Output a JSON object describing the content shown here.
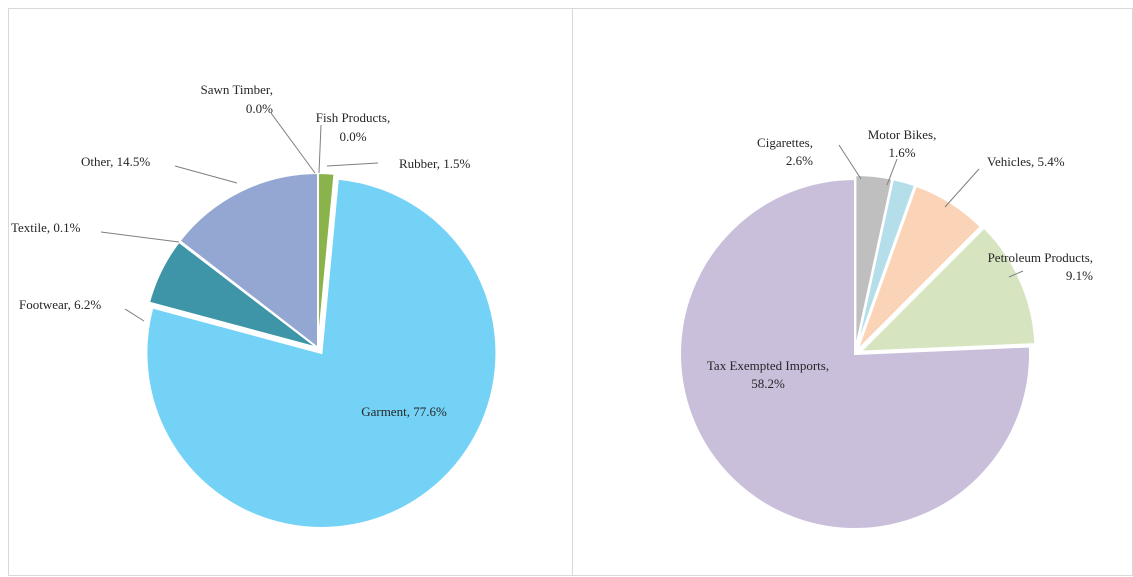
{
  "chart_data": [
    {
      "type": "pie",
      "title": "",
      "slices": [
        {
          "label": "Rubber",
          "value": 1.5,
          "value_text": "1.5%",
          "color": "#8bb34b"
        },
        {
          "label": "Garment",
          "value": 77.6,
          "value_text": "77.6%",
          "color": "#73d2f6"
        },
        {
          "label": "Footwear",
          "value": 6.2,
          "value_text": "6.2%",
          "color": "#3e95a8"
        },
        {
          "label": "Textile",
          "value": 0.1,
          "value_text": "0.1%",
          "color": "#c4c4c4"
        },
        {
          "label": "Other",
          "value": 14.5,
          "value_text": "14.5%",
          "color": "#94a6d2"
        },
        {
          "label": "Sawn Timber",
          "value": 0.0,
          "value_text": "0.0%",
          "color": "#7f7f7f"
        },
        {
          "label": "Fish Products",
          "value": 0.0,
          "value_text": "0.0%",
          "color": "#7f7f7f"
        }
      ]
    },
    {
      "type": "pie",
      "title": "",
      "slices": [
        {
          "label": "Cigarettes",
          "value": 2.6,
          "value_text": "2.6%",
          "color": "#bfbfbf"
        },
        {
          "label": "Motor Bikes",
          "value": 1.6,
          "value_text": "1.6%",
          "color": "#b4dfea"
        },
        {
          "label": "Vehicles",
          "value": 5.4,
          "value_text": "5.4%",
          "color": "#fbd3b6"
        },
        {
          "label": "Petroleum Products",
          "value": 9.1,
          "value_text": "9.1%",
          "color": "#d6e4c0"
        },
        {
          "label": "Tax Exempted Imports",
          "value": 58.2,
          "value_text": "58.2%",
          "color": "#c9bfdb"
        }
      ]
    }
  ]
}
